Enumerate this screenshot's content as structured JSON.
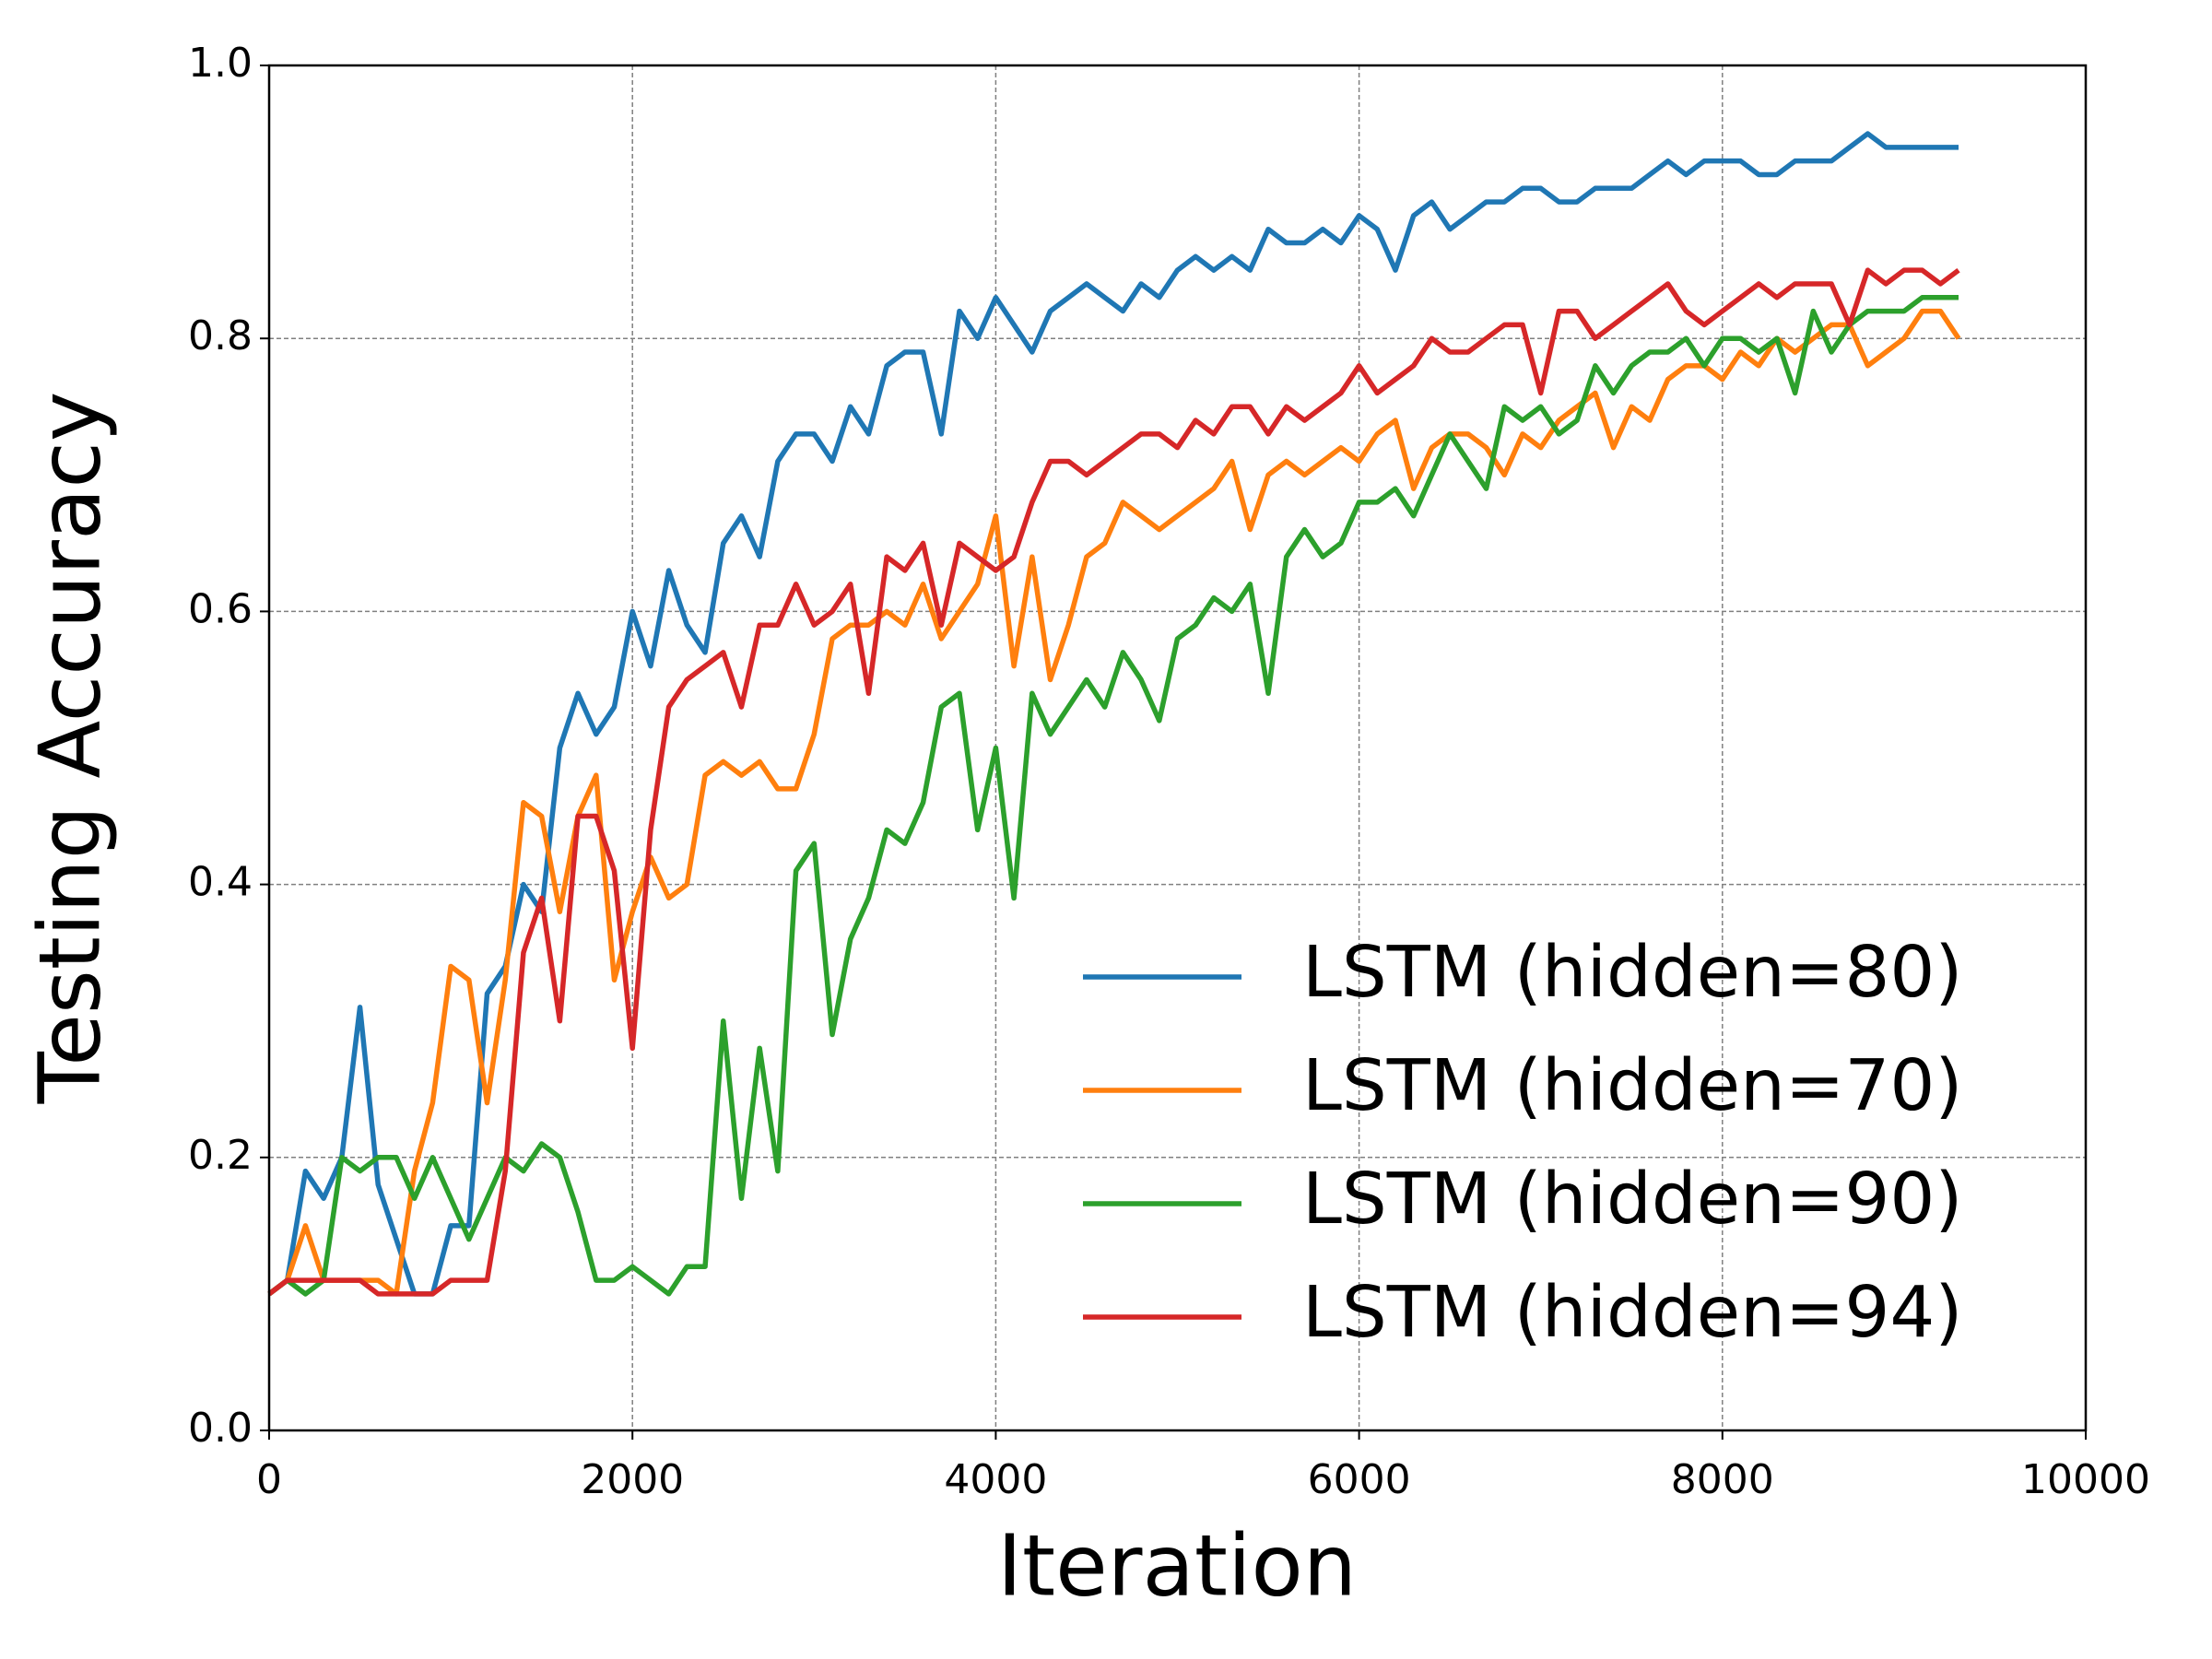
{
  "chart_data": {
    "type": "line",
    "xlabel": "Iteration",
    "ylabel": "Testing Accuracy",
    "x": [
      0,
      100,
      200,
      300,
      400,
      500,
      600,
      700,
      800,
      900,
      1000,
      1100,
      1200,
      1300,
      1400,
      1500,
      1600,
      1700,
      1800,
      1900,
      2000,
      2100,
      2200,
      2300,
      2400,
      2500,
      2600,
      2700,
      2800,
      2900,
      3000,
      3100,
      3200,
      3300,
      3400,
      3500,
      3600,
      3700,
      3800,
      3900,
      4000,
      4100,
      4200,
      4300,
      4400,
      4500,
      4600,
      4700,
      4800,
      4900,
      5000,
      5100,
      5200,
      5300,
      5400,
      5500,
      5600,
      5700,
      5800,
      5900,
      6000,
      6100,
      6200,
      6300,
      6400,
      6500,
      6600,
      6700,
      6800,
      6900,
      7000,
      7100,
      7200,
      7300,
      7400,
      7500,
      7600,
      7700,
      7800,
      7900,
      8000,
      8100,
      8200,
      8300,
      8400,
      8500,
      8600,
      8700,
      8800,
      8900,
      9000,
      9100,
      9200,
      9300
    ],
    "series": [
      {
        "name": "LSTM (hidden=80)",
        "color": "#1f77b4",
        "values": [
          0.1,
          0.11,
          0.19,
          0.17,
          0.2,
          0.31,
          0.18,
          0.14,
          0.1,
          0.1,
          0.15,
          0.15,
          0.32,
          0.34,
          0.4,
          0.38,
          0.5,
          0.54,
          0.51,
          0.53,
          0.6,
          0.56,
          0.63,
          0.59,
          0.57,
          0.65,
          0.67,
          0.64,
          0.71,
          0.73,
          0.73,
          0.71,
          0.75,
          0.73,
          0.78,
          0.79,
          0.79,
          0.73,
          0.82,
          0.8,
          0.83,
          0.81,
          0.79,
          0.82,
          0.83,
          0.84,
          0.83,
          0.82,
          0.84,
          0.83,
          0.85,
          0.86,
          0.85,
          0.86,
          0.85,
          0.88,
          0.87,
          0.87,
          0.88,
          0.87,
          0.89,
          0.88,
          0.85,
          0.89,
          0.9,
          0.88,
          0.89,
          0.9,
          0.9,
          0.91,
          0.91,
          0.9,
          0.9,
          0.91,
          0.91,
          0.91,
          0.92,
          0.93,
          0.92,
          0.93,
          0.93,
          0.93,
          0.92,
          0.92,
          0.93,
          0.93,
          0.93,
          0.94,
          0.95,
          0.94,
          0.94,
          0.94,
          0.94,
          0.94
        ]
      },
      {
        "name": "LSTM (hidden=70)",
        "color": "#ff7f0e",
        "values": [
          0.1,
          0.11,
          0.15,
          0.11,
          0.11,
          0.11,
          0.11,
          0.1,
          0.19,
          0.24,
          0.34,
          0.33,
          0.24,
          0.33,
          0.46,
          0.45,
          0.38,
          0.45,
          0.48,
          0.33,
          0.38,
          0.42,
          0.39,
          0.4,
          0.48,
          0.49,
          0.48,
          0.49,
          0.47,
          0.47,
          0.51,
          0.58,
          0.59,
          0.59,
          0.6,
          0.59,
          0.62,
          0.58,
          0.6,
          0.62,
          0.67,
          0.56,
          0.64,
          0.55,
          0.59,
          0.64,
          0.65,
          0.68,
          0.67,
          0.66,
          0.67,
          0.68,
          0.69,
          0.71,
          0.66,
          0.7,
          0.71,
          0.7,
          0.71,
          0.72,
          0.71,
          0.73,
          0.74,
          0.69,
          0.72,
          0.73,
          0.73,
          0.72,
          0.7,
          0.73,
          0.72,
          0.74,
          0.75,
          0.76,
          0.72,
          0.75,
          0.74,
          0.77,
          0.78,
          0.78,
          0.77,
          0.79,
          0.78,
          0.8,
          0.79,
          0.8,
          0.81,
          0.81,
          0.78,
          0.79,
          0.8,
          0.82,
          0.82,
          0.8
        ]
      },
      {
        "name": "LSTM (hidden=90)",
        "color": "#2ca02c",
        "values": [
          0.1,
          0.11,
          0.1,
          0.11,
          0.2,
          0.19,
          0.2,
          0.2,
          0.17,
          0.2,
          0.17,
          0.14,
          0.17,
          0.2,
          0.19,
          0.21,
          0.2,
          0.16,
          0.11,
          0.11,
          0.12,
          0.11,
          0.1,
          0.12,
          0.12,
          0.3,
          0.17,
          0.28,
          0.19,
          0.41,
          0.43,
          0.29,
          0.36,
          0.39,
          0.44,
          0.43,
          0.46,
          0.53,
          0.54,
          0.44,
          0.5,
          0.39,
          0.54,
          0.51,
          0.53,
          0.55,
          0.53,
          0.57,
          0.55,
          0.52,
          0.58,
          0.59,
          0.61,
          0.6,
          0.62,
          0.54,
          0.64,
          0.66,
          0.64,
          0.65,
          0.68,
          0.68,
          0.69,
          0.67,
          0.7,
          0.73,
          0.71,
          0.69,
          0.75,
          0.74,
          0.75,
          0.73,
          0.74,
          0.78,
          0.76,
          0.78,
          0.79,
          0.79,
          0.8,
          0.78,
          0.8,
          0.8,
          0.79,
          0.8,
          0.76,
          0.82,
          0.79,
          0.81,
          0.82,
          0.82,
          0.82,
          0.83,
          0.83,
          0.83
        ]
      },
      {
        "name": "LSTM (hidden=94)",
        "color": "#d62728",
        "values": [
          0.1,
          0.11,
          0.11,
          0.11,
          0.11,
          0.11,
          0.1,
          0.1,
          0.1,
          0.1,
          0.11,
          0.11,
          0.11,
          0.19,
          0.35,
          0.39,
          0.3,
          0.45,
          0.45,
          0.41,
          0.28,
          0.44,
          0.53,
          0.55,
          0.56,
          0.57,
          0.53,
          0.59,
          0.59,
          0.62,
          0.59,
          0.6,
          0.62,
          0.54,
          0.64,
          0.63,
          0.65,
          0.59,
          0.65,
          0.64,
          0.63,
          0.64,
          0.68,
          0.71,
          0.71,
          0.7,
          0.71,
          0.72,
          0.73,
          0.73,
          0.72,
          0.74,
          0.73,
          0.75,
          0.75,
          0.73,
          0.75,
          0.74,
          0.75,
          0.76,
          0.78,
          0.76,
          0.77,
          0.78,
          0.8,
          0.79,
          0.79,
          0.8,
          0.81,
          0.81,
          0.76,
          0.82,
          0.82,
          0.8,
          0.81,
          0.82,
          0.83,
          0.84,
          0.82,
          0.81,
          0.82,
          0.83,
          0.84,
          0.83,
          0.84,
          0.84,
          0.84,
          0.81,
          0.85,
          0.84,
          0.85,
          0.85,
          0.84,
          0.85
        ]
      }
    ],
    "xlim": [
      0,
      10000
    ],
    "xticks": [
      0,
      2000,
      4000,
      6000,
      8000,
      10000
    ],
    "ylim": [
      0,
      1
    ],
    "yticks": [
      {
        "value": 0,
        "label": "0.0"
      },
      0.2,
      0.4,
      0.6,
      0.8,
      {
        "value": 1,
        "label": "1.0"
      }
    ],
    "grid": true,
    "legend": "lower right"
  }
}
